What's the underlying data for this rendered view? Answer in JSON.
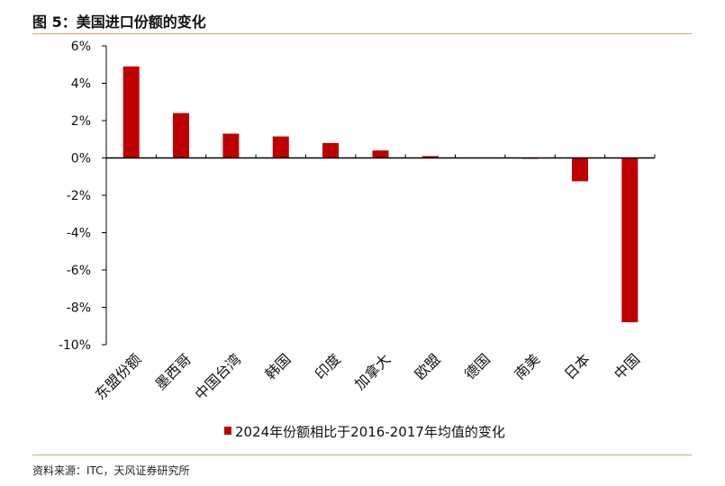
{
  "figure": {
    "title": "图 5：美国进口份额的变化",
    "source": "资料来源：ITC，天风证券研究所"
  },
  "chart_data": {
    "type": "bar",
    "categories": [
      "东盟份额",
      "墨西哥",
      "中国台湾",
      "韩国",
      "印度",
      "加拿大",
      "欧盟",
      "德国",
      "南美",
      "日本",
      "中国"
    ],
    "series": [
      {
        "name": "2024年份额相比于2016-2017年均值的变化",
        "values": [
          4.9,
          2.4,
          1.3,
          1.15,
          0.8,
          0.4,
          0.1,
          0.0,
          -0.05,
          -1.25,
          -8.8
        ],
        "color": "#c00000"
      }
    ],
    "ylim": [
      -10,
      6
    ],
    "yticks": [
      6,
      4,
      2,
      0,
      -2,
      -4,
      -6,
      -8,
      -10
    ],
    "ytick_labels": [
      "6%",
      "4%",
      "2%",
      "0%",
      "-2%",
      "-4%",
      "-6%",
      "-8%",
      "-10%"
    ],
    "legend_position": "bottom",
    "grid": false
  }
}
